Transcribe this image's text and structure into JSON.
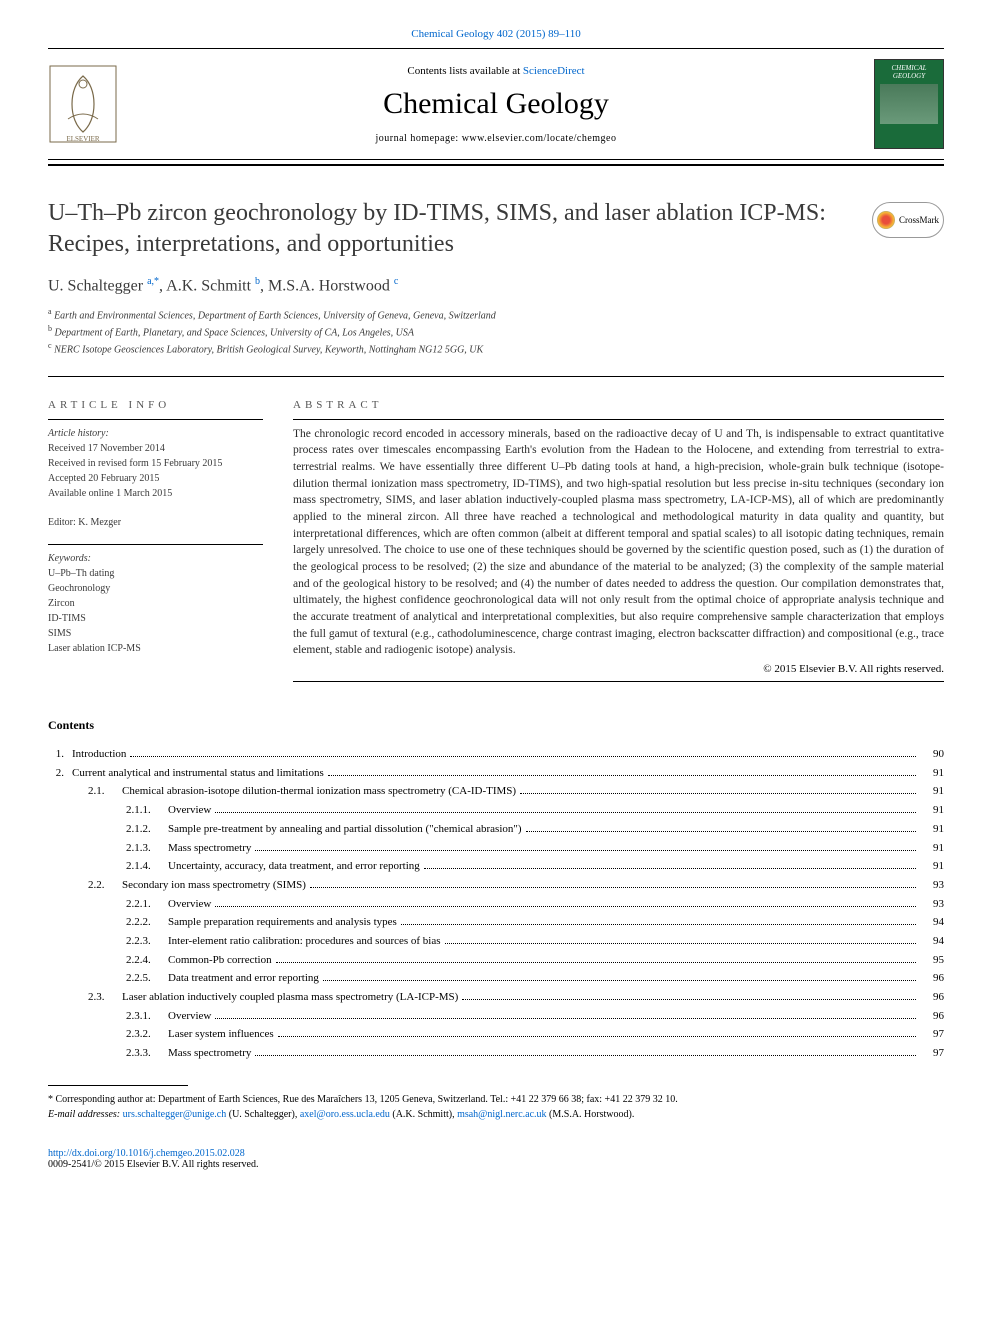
{
  "top_link": {
    "text": "Chemical Geology 402 (2015) 89–110",
    "href": "#"
  },
  "header": {
    "contents_prefix": "Contents lists available at ",
    "contents_link": "ScienceDirect",
    "journal_name": "Chemical Geology",
    "homepage_prefix": "journal homepage: ",
    "homepage_url": "www.elsevier.com/locate/chemgeo",
    "cover_label": "CHEMICAL GEOLOGY"
  },
  "article": {
    "title": "U–Th–Pb zircon geochronology by ID-TIMS, SIMS, and laser ablation ICP-MS: Recipes, interpretations, and opportunities",
    "crossmark_label": "CrossMark"
  },
  "authors": {
    "a1": {
      "name": "U. Schaltegger ",
      "sup": "a,",
      "star": "*"
    },
    "a2": {
      "name": ", A.K. Schmitt ",
      "sup": "b"
    },
    "a3": {
      "name": ", M.S.A. Horstwood ",
      "sup": "c"
    }
  },
  "affiliations": {
    "a": {
      "sup": "a",
      "text": " Earth and Environmental Sciences, Department of Earth Sciences, University of Geneva, Geneva, Switzerland"
    },
    "b": {
      "sup": "b",
      "text": " Department of Earth, Planetary, and Space Sciences, University of CA, Los Angeles, USA"
    },
    "c": {
      "sup": "c",
      "text": " NERC Isotope Geosciences Laboratory, British Geological Survey, Keyworth, Nottingham NG12 5GG, UK"
    }
  },
  "article_info": {
    "heading": "article info",
    "history_label": "Article history:",
    "received": "Received 17 November 2014",
    "revised": "Received in revised form 15 February 2015",
    "accepted": "Accepted 20 February 2015",
    "online": "Available online 1 March 2015",
    "editor_label": "Editor: ",
    "editor": "K. Mezger",
    "keywords_label": "Keywords:",
    "keywords": [
      "U–Pb–Th dating",
      "Geochronology",
      "Zircon",
      "ID-TIMS",
      "SIMS",
      "Laser ablation ICP-MS"
    ]
  },
  "abstract": {
    "heading": "abstract",
    "text": "The chronologic record encoded in accessory minerals, based on the radioactive decay of U and Th, is indispensable to extract quantitative process rates over timescales encompassing Earth's evolution from the Hadean to the Holocene, and extending from terrestrial to extra-terrestrial realms. We have essentially three different U–Pb dating tools at hand, a high-precision, whole-grain bulk technique (isotope-dilution thermal ionization mass spectrometry, ID-TIMS), and two high-spatial resolution but less precise in-situ techniques (secondary ion mass spectrometry, SIMS, and laser ablation inductively-coupled plasma mass spectrometry, LA-ICP-MS), all of which are predominantly applied to the mineral zircon. All three have reached a technological and methodological maturity in data quality and quantity, but interpretational differences, which are often common (albeit at different temporal and spatial scales) to all isotopic dating techniques, remain largely unresolved. The choice to use one of these techniques should be governed by the scientific question posed, such as (1) the duration of the geological process to be resolved; (2) the size and abundance of the material to be analyzed; (3) the complexity of the sample material and of the geological history to be resolved; and (4) the number of dates needed to address the question. Our compilation demonstrates that, ultimately, the highest confidence geochronological data will not only result from the optimal choice of appropriate analysis technique and the accurate treatment of analytical and interpretational complexities, but also require comprehensive sample characterization that employs the full gamut of textural (e.g., cathodoluminescence, charge contrast imaging, electron backscatter diffraction) and compositional (e.g., trace element, stable and radiogenic isotope) analysis.",
    "copyright": "© 2015 Elsevier B.V. All rights reserved."
  },
  "contents": {
    "heading": "Contents",
    "items": [
      {
        "level": 1,
        "num": "1.",
        "title": "Introduction",
        "page": "90"
      },
      {
        "level": 1,
        "num": "2.",
        "title": "Current analytical and instrumental status and limitations",
        "page": "91"
      },
      {
        "level": 2,
        "num": "2.1.",
        "title": "Chemical abrasion-isotope dilution-thermal ionization mass spectrometry (CA-ID-TIMS)",
        "page": "91"
      },
      {
        "level": 3,
        "num": "2.1.1.",
        "title": "Overview",
        "page": "91"
      },
      {
        "level": 3,
        "num": "2.1.2.",
        "title": "Sample pre-treatment by annealing and partial dissolution (\"chemical abrasion\")",
        "page": "91"
      },
      {
        "level": 3,
        "num": "2.1.3.",
        "title": "Mass spectrometry",
        "page": "91"
      },
      {
        "level": 3,
        "num": "2.1.4.",
        "title": "Uncertainty, accuracy, data treatment, and error reporting",
        "page": "91"
      },
      {
        "level": 2,
        "num": "2.2.",
        "title": "Secondary ion mass spectrometry (SIMS)",
        "page": "93"
      },
      {
        "level": 3,
        "num": "2.2.1.",
        "title": "Overview",
        "page": "93"
      },
      {
        "level": 3,
        "num": "2.2.2.",
        "title": "Sample preparation requirements and analysis types",
        "page": "94"
      },
      {
        "level": 3,
        "num": "2.2.3.",
        "title": "Inter-element ratio calibration: procedures and sources of bias",
        "page": "94"
      },
      {
        "level": 3,
        "num": "2.2.4.",
        "title": "Common-Pb correction",
        "page": "95"
      },
      {
        "level": 3,
        "num": "2.2.5.",
        "title": "Data treatment and error reporting",
        "page": "96"
      },
      {
        "level": 2,
        "num": "2.3.",
        "title": "Laser ablation inductively coupled plasma mass spectrometry (LA-ICP-MS)",
        "page": "96"
      },
      {
        "level": 3,
        "num": "2.3.1.",
        "title": "Overview",
        "page": "96"
      },
      {
        "level": 3,
        "num": "2.3.2.",
        "title": "Laser system influences",
        "page": "97"
      },
      {
        "level": 3,
        "num": "2.3.3.",
        "title": "Mass spectrometry",
        "page": "97"
      }
    ]
  },
  "footnote": {
    "star": "*",
    "corr_text": " Corresponding author at: Department of Earth Sciences, Rue des Maraîchers 13, 1205 Geneva, Switzerland. Tel.: +41 22 379 66 38; fax: +41 22 379 32 10.",
    "email_label": "E-mail addresses: ",
    "e1": {
      "addr": "urs.schaltegger@unige.ch",
      "who": " (U. Schaltegger), "
    },
    "e2": {
      "addr": "axel@oro.ess.ucla.edu",
      "who": " (A.K. Schmitt), "
    },
    "e3": {
      "addr": "msah@nigl.nerc.ac.uk",
      "who": " (M.S.A. Horstwood)."
    }
  },
  "footer": {
    "doi": "http://dx.doi.org/10.1016/j.chemgeo.2015.02.028",
    "issn_line": "0009-2541/© 2015 Elsevier B.V. All rights reserved."
  },
  "colors": {
    "link": "#0066cc",
    "text": "#2a2a2a",
    "cover_bg": "#1a6b3a"
  }
}
